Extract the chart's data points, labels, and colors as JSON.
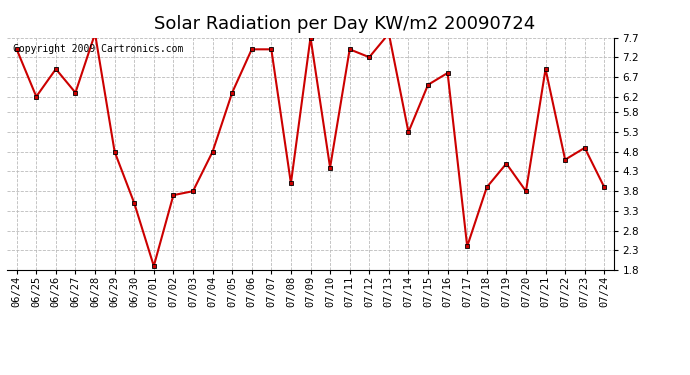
{
  "title": "Solar Radiation per Day KW/m2 20090724",
  "copyright_text": "Copyright 2009 Cartronics.com",
  "dates": [
    "06/24",
    "06/25",
    "06/26",
    "06/27",
    "06/28",
    "06/29",
    "06/30",
    "07/01",
    "07/02",
    "07/03",
    "07/04",
    "07/05",
    "07/06",
    "07/07",
    "07/08",
    "07/09",
    "07/10",
    "07/11",
    "07/12",
    "07/13",
    "07/14",
    "07/15",
    "07/16",
    "07/17",
    "07/18",
    "07/19",
    "07/20",
    "07/21",
    "07/22",
    "07/23",
    "07/24"
  ],
  "values": [
    7.4,
    6.2,
    6.9,
    6.3,
    7.8,
    4.8,
    3.5,
    1.9,
    3.7,
    3.8,
    4.8,
    6.3,
    7.4,
    7.4,
    4.0,
    7.7,
    4.4,
    7.4,
    7.2,
    7.8,
    5.3,
    6.5,
    6.8,
    2.4,
    3.9,
    4.5,
    3.8,
    6.9,
    4.6,
    4.9,
    3.9
  ],
  "ylim": [
    1.8,
    7.7
  ],
  "yticks": [
    1.8,
    2.3,
    2.8,
    3.3,
    3.8,
    4.3,
    4.8,
    5.3,
    5.8,
    6.2,
    6.7,
    7.2,
    7.7
  ],
  "line_color": "#cc0000",
  "marker": "s",
  "marker_size": 3,
  "background_color": "#ffffff",
  "grid_color": "#bbbbbb",
  "title_fontsize": 13,
  "tick_fontsize": 7.5,
  "copyright_fontsize": 7
}
